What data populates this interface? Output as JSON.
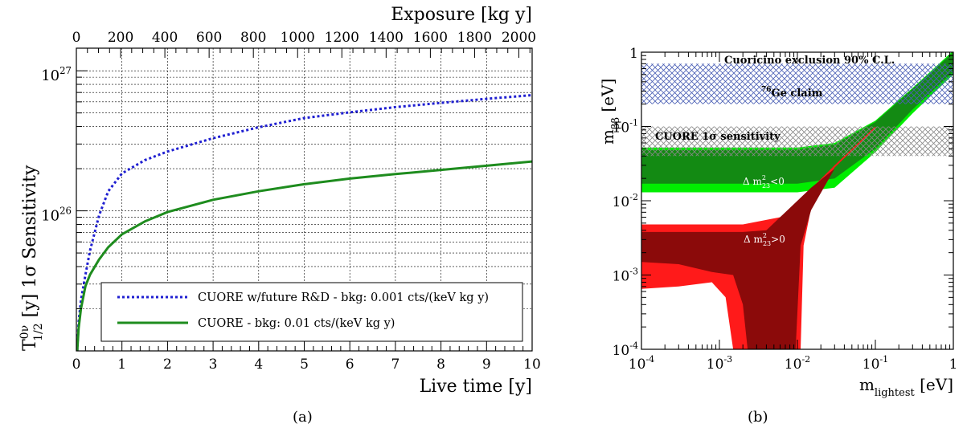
{
  "chart_data": [
    {
      "type": "line",
      "panel_label": "(a)",
      "xlabel": "Live time [y]",
      "x2label": "Exposure [kg y]",
      "ylabel_main": "T",
      "ylabel_sup": "0ν",
      "ylabel_sub": "1/2",
      "ylabel_rest": " [y]   1σ  Sensitivity",
      "xlim": [
        0,
        10
      ],
      "x2lim": [
        0,
        2060
      ],
      "ylim": [
        1e+25,
        1.45e+27
      ],
      "yscale": "log",
      "grid": true,
      "legend_position": "bottom-right",
      "x_ticks": [
        "0",
        "1",
        "2",
        "3",
        "4",
        "5",
        "6",
        "7",
        "8",
        "9",
        "10"
      ],
      "x2_ticks": [
        "0",
        "200",
        "400",
        "600",
        "800",
        "1000",
        "1200",
        "1400",
        "1600",
        "1800",
        "2000"
      ],
      "y_ticks": [
        {
          "base": "10",
          "exp": "26",
          "value": 1e+26
        },
        {
          "base": "10",
          "exp": "27",
          "value": 1e+27
        }
      ],
      "series": [
        {
          "name": "CUORE w/future R&D - bkg: 0.001 cts/(keV kg y)",
          "color": "#1f1fd1",
          "style": "dotted",
          "x": [
            0.02,
            0.05,
            0.1,
            0.2,
            0.3,
            0.5,
            0.7,
            1.0,
            1.5,
            2,
            3,
            4,
            5,
            6,
            7,
            8,
            9,
            10
          ],
          "y": [
            1e+25,
            1.6e+25,
            2.3e+25,
            3.5e+25,
            5.2e+25,
            9.3e+25,
            1.38e+26,
            1.85e+26,
            2.3e+26,
            2.65e+26,
            3.3e+26,
            3.95e+26,
            4.6e+26,
            5.05e+26,
            5.5e+26,
            5.9e+26,
            6.3e+26,
            6.7e+26
          ]
        },
        {
          "name": "CUORE - bkg: 0.01 cts/(keV kg y)",
          "color": "#1e8c1e",
          "style": "solid",
          "x": [
            0.02,
            0.05,
            0.1,
            0.2,
            0.3,
            0.5,
            0.7,
            1.0,
            1.5,
            2,
            3,
            4,
            5,
            6,
            7,
            8,
            9,
            10
          ],
          "y": [
            1e+25,
            1.45e+25,
            2e+25,
            2.9e+25,
            3.5e+25,
            4.5e+25,
            5.5e+25,
            6.8e+25,
            8.4e+25,
            9.8e+25,
            1.2e+26,
            1.38e+26,
            1.55e+26,
            1.7e+26,
            1.83e+26,
            1.96e+26,
            2.1e+26,
            2.25e+26
          ]
        }
      ]
    },
    {
      "type": "area",
      "panel_label": "(b)",
      "xlabel_main": "m",
      "xlabel_sub": "lightest",
      "xlabel_rest": " [eV]",
      "ylabel_main": "m",
      "ylabel_sub": "ββ",
      "ylabel_rest": " [eV]",
      "xlim": [
        0.0001,
        1
      ],
      "ylim": [
        0.0001,
        1
      ],
      "xscale": "log",
      "yscale": "log",
      "x_ticks": [
        {
          "base": "10",
          "exp": "-4",
          "value": 0.0001
        },
        {
          "base": "10",
          "exp": "-3",
          "value": 0.001
        },
        {
          "base": "10",
          "exp": "-2",
          "value": 0.01
        },
        {
          "base": "10",
          "exp": "-1",
          "value": 0.1
        },
        {
          "base": "1",
          "exp": "",
          "value": 1
        }
      ],
      "y_ticks": [
        {
          "base": "10",
          "exp": "-4",
          "value": 0.0001
        },
        {
          "base": "10",
          "exp": "-3",
          "value": 0.001
        },
        {
          "base": "10",
          "exp": "-2",
          "value": 0.01
        },
        {
          "base": "10",
          "exp": "-1",
          "value": 0.1
        },
        {
          "base": "1",
          "exp": "",
          "value": 1
        }
      ],
      "hatched_bands": [
        {
          "label": "Cuoricino exclusion 90% C.L.",
          "ymin": 0.2,
          "ymax": 0.7,
          "color": "#4a5fb5"
        },
        {
          "label_sup": "76",
          "label": "Ge claim",
          "ymin": 0.2,
          "ymax": 0.7,
          "color": "#4a5fb5"
        },
        {
          "label": "CUORE 1σ sensitivity",
          "ymin": 0.04,
          "ymax": 0.1,
          "color": "#888888"
        }
      ],
      "regions": [
        {
          "label_main": "Δ m",
          "label_sup": "2",
          "label_sub": "23",
          "label_rest": "<0",
          "color_outer": "#00ee00",
          "color_inner": "#138a13",
          "outer_upper": [
            [
              0.0001,
              0.052
            ],
            [
              0.01,
              0.052
            ],
            [
              0.03,
              0.06
            ],
            [
              0.1,
              0.12
            ],
            [
              0.3,
              0.33
            ],
            [
              1,
              1.05
            ]
          ],
          "outer_lower": [
            [
              0.0001,
              0.013
            ],
            [
              0.01,
              0.013
            ],
            [
              0.03,
              0.015
            ],
            [
              0.1,
              0.045
            ],
            [
              0.3,
              0.15
            ],
            [
              1,
              0.5
            ]
          ],
          "inner_upper": [
            [
              0.0001,
              0.048
            ],
            [
              0.01,
              0.049
            ],
            [
              0.03,
              0.057
            ],
            [
              0.1,
              0.115
            ],
            [
              0.3,
              0.32
            ],
            [
              1,
              1.0
            ]
          ],
          "inner_lower": [
            [
              0.0001,
              0.017
            ],
            [
              0.01,
              0.017
            ],
            [
              0.03,
              0.02
            ],
            [
              0.1,
              0.05
            ],
            [
              0.3,
              0.17
            ],
            [
              1,
              0.55
            ]
          ]
        },
        {
          "label_main": "Δ m",
          "label_sup": "2",
          "label_sub": "23",
          "label_rest": ">0",
          "color_outer": "#ff1a1a",
          "color_inner": "#8b0a0a"
        }
      ]
    }
  ],
  "captions": {
    "a": "(a)",
    "b": "(b)"
  }
}
